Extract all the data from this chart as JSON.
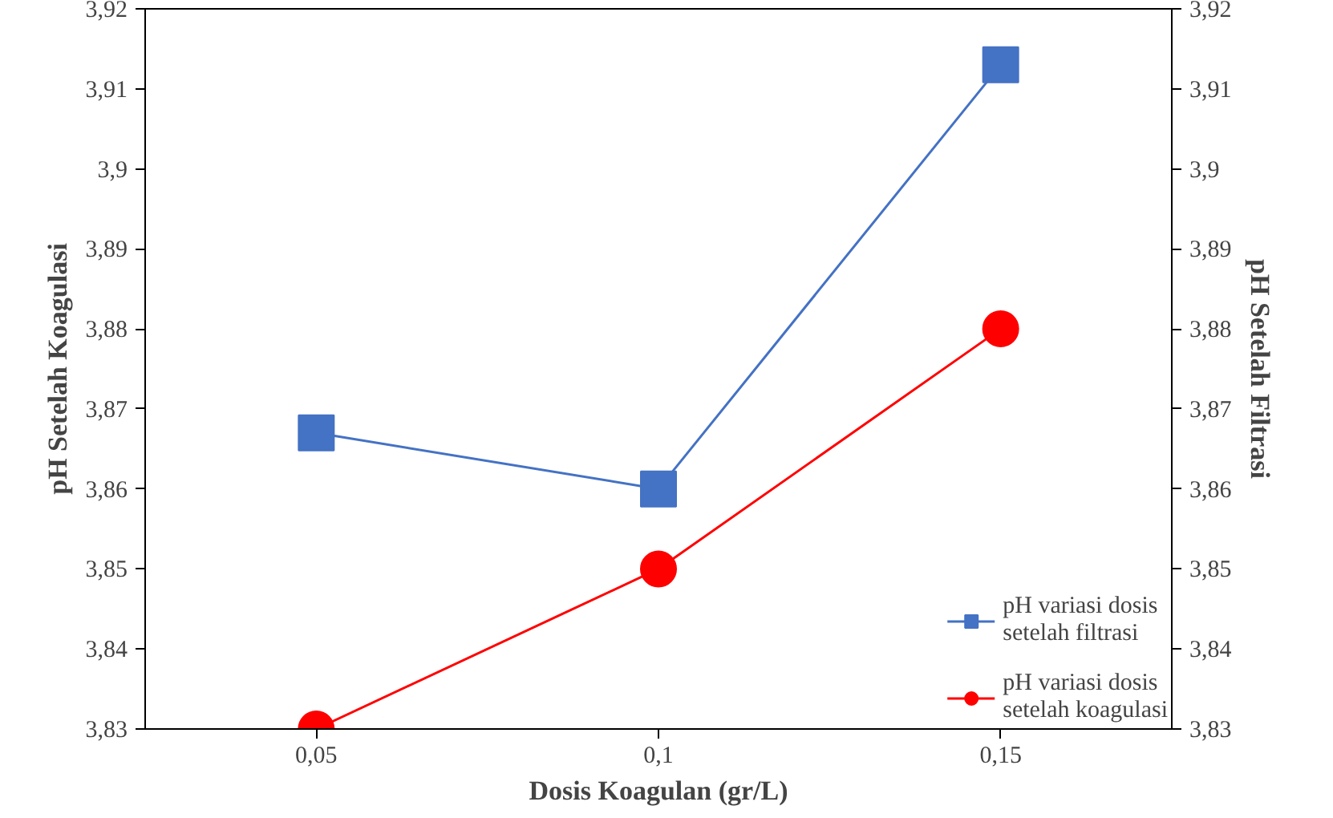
{
  "chart_data": {
    "type": "line",
    "xlabel": "Dosis Koagulan (gr/L)",
    "ylabel": "pH Setelah Koagulasi",
    "y2label": "pH Setelah Filtrasi",
    "categories": [
      "0,05",
      "0,1",
      "0,15"
    ],
    "series": [
      {
        "name": "pH variasi dosis setelah filtrasi",
        "color": "#4472c4",
        "values": [
          3.867,
          3.86,
          3.913
        ],
        "marker": "square"
      },
      {
        "name": "pH variasi dosis setelah koagulasi",
        "color": "#ff0000",
        "values": [
          3.83,
          3.85,
          3.88
        ],
        "marker": "circle"
      }
    ],
    "ylim": [
      3.83,
      3.92
    ],
    "yticks": [
      {
        "value": 3.83,
        "label": "3,83"
      },
      {
        "value": 3.84,
        "label": "3,84"
      },
      {
        "value": 3.85,
        "label": "3,85"
      },
      {
        "value": 3.86,
        "label": "3,86"
      },
      {
        "value": 3.87,
        "label": "3,87"
      },
      {
        "value": 3.88,
        "label": "3,88"
      },
      {
        "value": 3.89,
        "label": "3,89"
      },
      {
        "value": 3.9,
        "label": "3,9"
      },
      {
        "value": 3.91,
        "label": "3,91"
      },
      {
        "value": 3.92,
        "label": "3,92"
      }
    ],
    "y2lim": [
      3.83,
      3.92
    ],
    "y2ticks": [
      {
        "value": 3.83,
        "label": "3,83"
      },
      {
        "value": 3.84,
        "label": "3,84"
      },
      {
        "value": 3.85,
        "label": "3,85"
      },
      {
        "value": 3.86,
        "label": "3,86"
      },
      {
        "value": 3.87,
        "label": "3,87"
      },
      {
        "value": 3.88,
        "label": "3,88"
      },
      {
        "value": 3.89,
        "label": "3,89"
      },
      {
        "value": 3.9,
        "label": "3,9"
      },
      {
        "value": 3.91,
        "label": "3,91"
      },
      {
        "value": 3.92,
        "label": "3,92"
      }
    ],
    "grid": false,
    "legend": "bottom right",
    "line_style": "solid"
  }
}
